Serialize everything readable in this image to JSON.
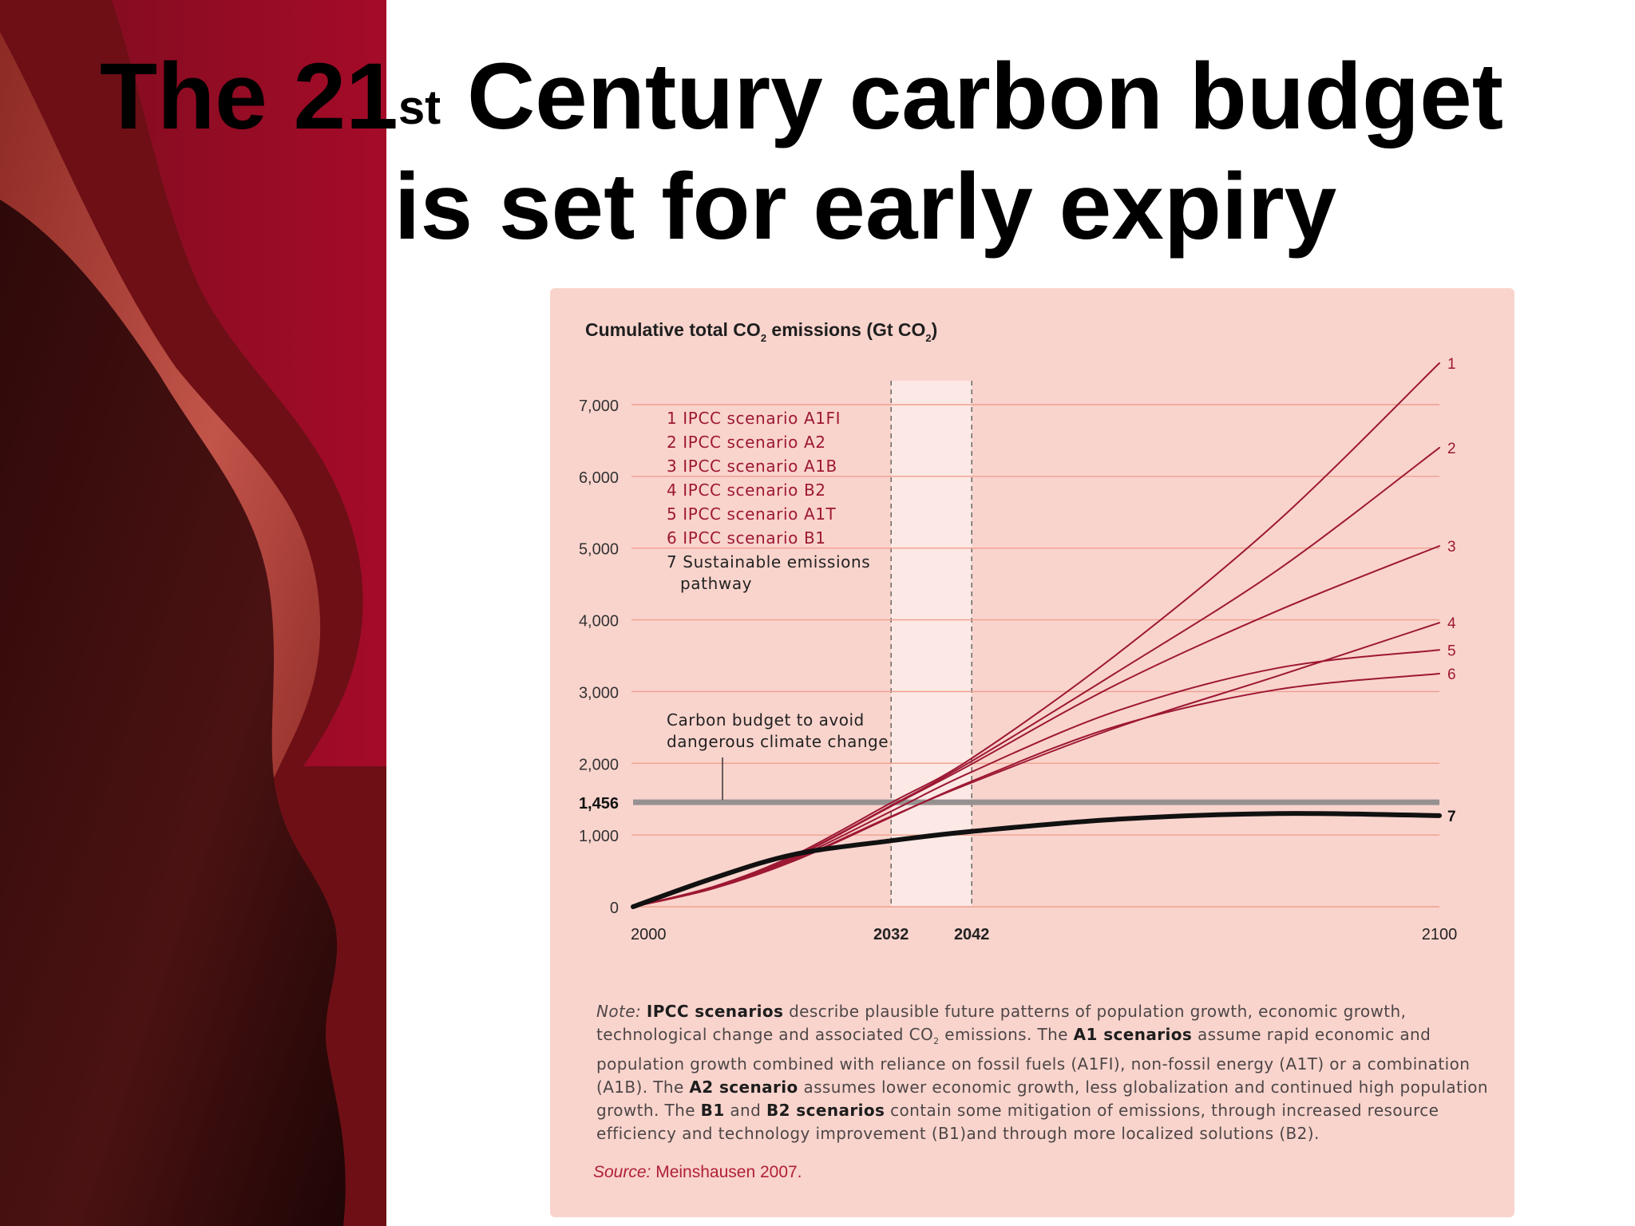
{
  "slide": {
    "title_pre": "The 21",
    "title_sup": "st",
    "title_post": " Century carbon budget",
    "title_line2": "is set for early expiry"
  },
  "colors": {
    "accent": "#a3122a",
    "panel_bg": "#f9d4cd",
    "gridline": "#ef9f8d",
    "scenario_line": "#9d1833",
    "sustainable_line": "#111111",
    "budget_line": "#969191"
  },
  "chart_data": {
    "type": "line",
    "title": "Cumulative total CO2 emissions (Gt CO2)",
    "title_parts": [
      "Cumulative total CO",
      "2",
      " emissions (Gt CO",
      "2",
      ")"
    ],
    "xlim": [
      2000,
      2100
    ],
    "ylim": [
      0,
      7000
    ],
    "y_ticks": [
      0,
      1000,
      2000,
      3000,
      4000,
      5000,
      6000,
      7000
    ],
    "y_tick_labels": [
      "0",
      "1,000",
      "2,000",
      "3,000",
      "4,000",
      "5,000",
      "6,000",
      "7,000"
    ],
    "x_ticks": [
      2000,
      2032,
      2042,
      2100
    ],
    "x_tick_labels": [
      "2000",
      "2032",
      "2042",
      "2100"
    ],
    "x_bold_ticks": [
      2032,
      2042
    ],
    "grid": true,
    "shaded_period": [
      2032,
      2042
    ],
    "budget_line": {
      "value": 1456,
      "label": "1,456",
      "annotation": [
        "Carbon budget to avoid",
        "dangerous climate change"
      ]
    },
    "legend": {
      "placement": "top-left",
      "entries": [
        "1 IPCC scenario A1FI",
        "2 IPCC scenario A2",
        "3 IPCC scenario A1B",
        "4 IPCC scenario B2",
        "5 IPCC scenario A1T",
        "6 IPCC scenario B1",
        "7 Sustainable emissions",
        "pathway"
      ]
    },
    "series": [
      {
        "label": "1",
        "emphasis": "scenario",
        "x": [
          2000,
          2010,
          2020,
          2032,
          2042,
          2060,
          2080,
          2100
        ],
        "y": [
          0,
          280,
          720,
          1450,
          2070,
          3520,
          5380,
          7580
        ]
      },
      {
        "label": "2",
        "emphasis": "scenario",
        "x": [
          2000,
          2010,
          2020,
          2032,
          2042,
          2060,
          2080,
          2100
        ],
        "y": [
          0,
          280,
          700,
          1410,
          2030,
          3270,
          4700,
          6400
        ]
      },
      {
        "label": "3",
        "emphasis": "scenario",
        "x": [
          2000,
          2010,
          2020,
          2032,
          2042,
          2060,
          2080,
          2100
        ],
        "y": [
          0,
          270,
          690,
          1400,
          1990,
          3100,
          4130,
          5030
        ]
      },
      {
        "label": "4",
        "emphasis": "scenario",
        "x": [
          2000,
          2010,
          2020,
          2032,
          2042,
          2060,
          2080,
          2100
        ],
        "y": [
          0,
          260,
          650,
          1260,
          1730,
          2500,
          3220,
          3960
        ]
      },
      {
        "label": "5",
        "emphasis": "scenario",
        "x": [
          2000,
          2010,
          2020,
          2032,
          2042,
          2060,
          2080,
          2100
        ],
        "y": [
          0,
          260,
          670,
          1330,
          1880,
          2730,
          3330,
          3580
        ]
      },
      {
        "label": "6",
        "emphasis": "scenario",
        "x": [
          2000,
          2010,
          2020,
          2032,
          2042,
          2060,
          2080,
          2100
        ],
        "y": [
          0,
          255,
          640,
          1250,
          1750,
          2520,
          3030,
          3250
        ]
      },
      {
        "label": "7",
        "emphasis": "sustainable",
        "x": [
          2000,
          2010,
          2020,
          2032,
          2042,
          2060,
          2080,
          2100
        ],
        "y": [
          0,
          400,
          730,
          920,
          1050,
          1220,
          1300,
          1270
        ]
      }
    ]
  },
  "note": {
    "label": "Note:",
    "segments": [
      {
        "b": true,
        "t": "IPCC scenarios"
      },
      {
        "b": false,
        "t": " describe plausible future patterns of population growth, economic growth, technological change and associated CO"
      },
      {
        "sub": true,
        "t": "2"
      },
      {
        "b": false,
        "t": " emissions. The "
      },
      {
        "b": true,
        "t": "A1 scenarios"
      },
      {
        "b": false,
        "t": " assume rapid economic and population growth combined with reliance on fossil fuels (A1FI), non-fossil energy (A1T) or a combination (A1B). The "
      },
      {
        "b": true,
        "t": "A2 scenario"
      },
      {
        "b": false,
        "t": " assumes lower economic growth, less globalization and continued high population growth. The "
      },
      {
        "b": true,
        "t": "B1"
      },
      {
        "b": false,
        "t": " and "
      },
      {
        "b": true,
        "t": "B2 scenarios"
      },
      {
        "b": false,
        "t": " contain some mitigation of emissions, through increased resource efficiency and technology improvement (B1)and through more localized solutions (B2)."
      }
    ]
  },
  "source": {
    "label": "Source:",
    "text": " Meinshausen 2007."
  }
}
